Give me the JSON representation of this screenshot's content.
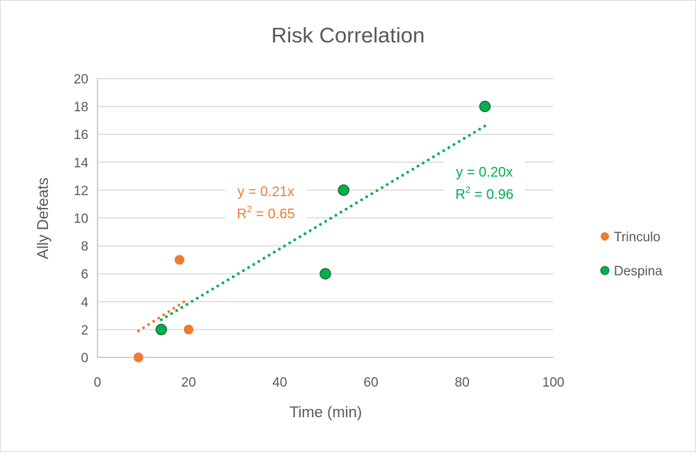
{
  "chart_data": {
    "type": "scatter",
    "title": "Risk Correlation",
    "xlabel": "Time (min)",
    "ylabel": "Ally Defeats",
    "xlim": [
      0,
      100
    ],
    "ylim": [
      0,
      20
    ],
    "xticks": [
      0,
      20,
      40,
      60,
      80,
      100
    ],
    "yticks": [
      0,
      2,
      4,
      6,
      8,
      10,
      12,
      14,
      16,
      18,
      20
    ],
    "grid": "horizontal",
    "legend_position": "right",
    "series": [
      {
        "name": "Trinculo",
        "color": "#ed7d31",
        "marker_edge": "#ed7d31",
        "points": [
          [
            9,
            0
          ],
          [
            18,
            7
          ],
          [
            20,
            2
          ]
        ],
        "trendline": {
          "type": "linear",
          "style": "dotted",
          "x_range": [
            9,
            20
          ],
          "y_range": [
            1.9,
            4.2
          ],
          "equation": "y = 0.21x",
          "r2_label": "R",
          "r2_sup": "2",
          "r2_value": " = 0.65"
        }
      },
      {
        "name": "Despina",
        "color": "#00b050",
        "marker_edge": "#1e6b35",
        "points": [
          [
            14,
            2
          ],
          [
            50,
            6
          ],
          [
            54,
            12
          ],
          [
            85,
            18
          ]
        ],
        "trendline": {
          "type": "linear",
          "style": "dotted",
          "x_range": [
            14,
            85
          ],
          "y_range": [
            2.7,
            16.6
          ],
          "equation": "y = 0.20x",
          "r2_label": "R",
          "r2_sup": "2",
          "r2_value": " = 0.96"
        }
      }
    ]
  }
}
